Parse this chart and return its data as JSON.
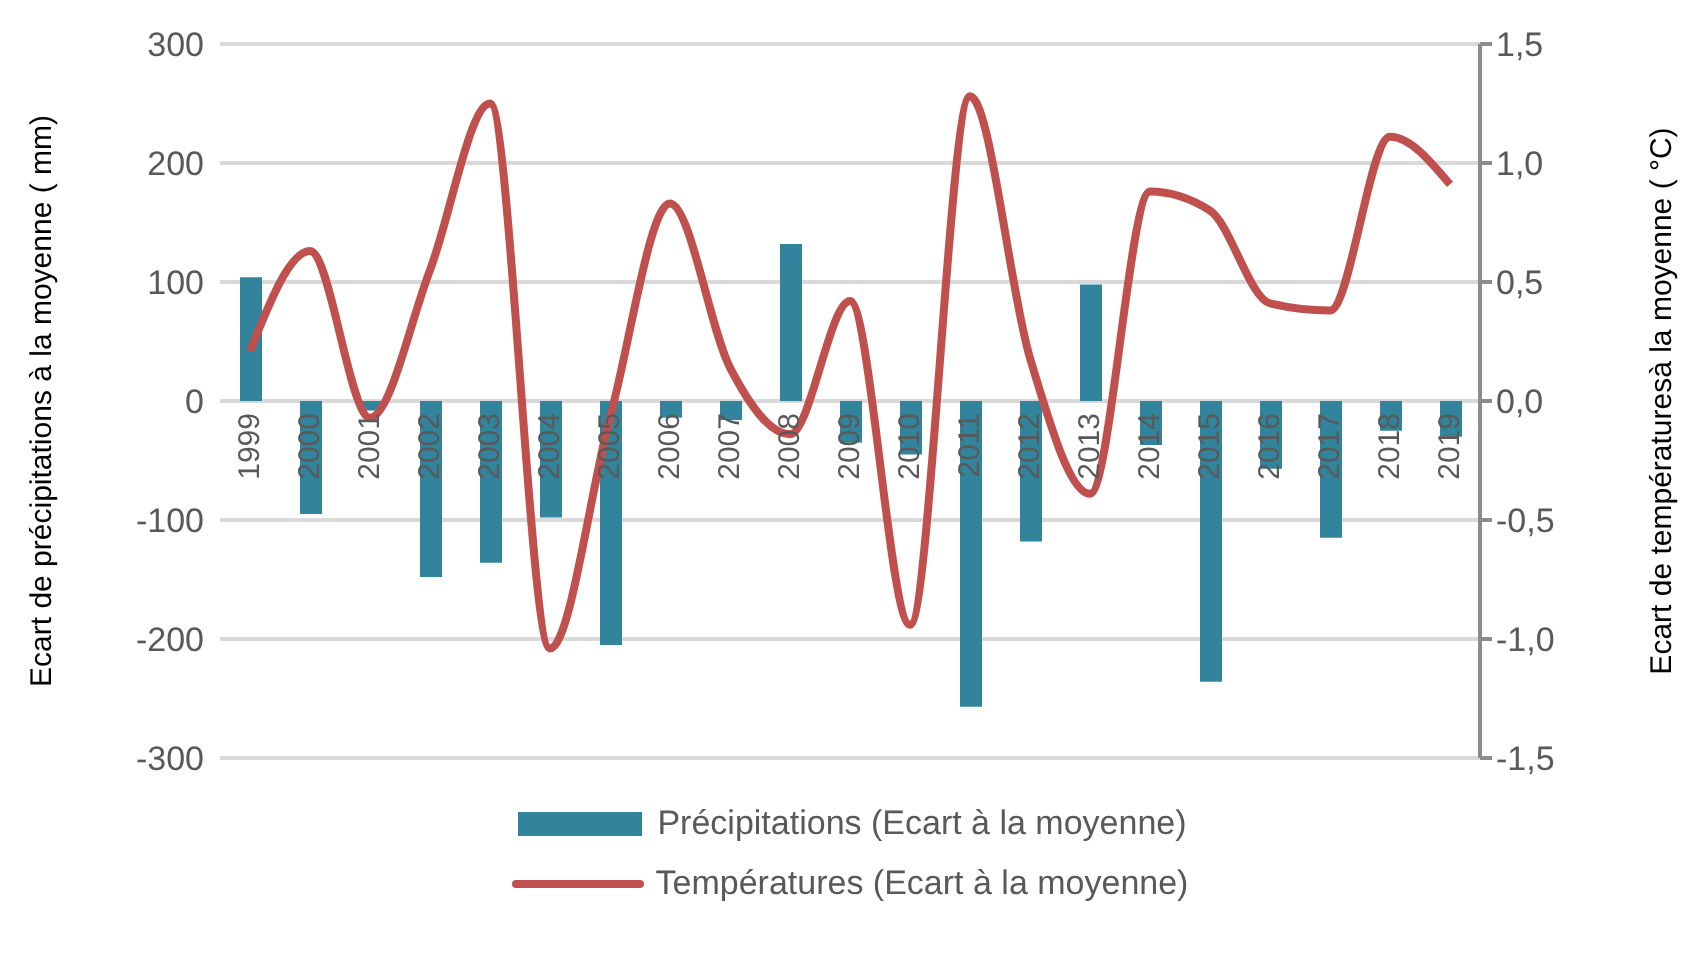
{
  "chart_data": {
    "type": "bar",
    "ylabel": "Ecart de précipitations à la moyenne ( mm)",
    "y2label": "Ecart de températuresà la moyenne ( °C)",
    "categories": [
      "1999",
      "2000",
      "2001",
      "2002",
      "2003",
      "2004",
      "2005",
      "2006",
      "2007",
      "2008",
      "2009",
      "2010",
      "2011",
      "2012",
      "2013",
      "2014",
      "2015",
      "2016",
      "2017",
      "2018",
      "2019"
    ],
    "series": [
      {
        "name": "Précipitations (Ecart à la moyenne)",
        "color": "#31849b",
        "values": [
          104,
          -95,
          -8,
          -148,
          -136,
          -98,
          -205,
          -14,
          -16,
          132,
          -35,
          -45,
          -257,
          -118,
          98,
          -37,
          -236,
          -57,
          -115,
          -25,
          -30
        ]
      },
      {
        "name": "Températures (Ecart à la moyenne)",
        "type": "line",
        "axis": "y2",
        "color": "#c0504d",
        "line_style": "solid",
        "values": [
          0.21,
          0.63,
          -0.07,
          0.55,
          1.25,
          -1.04,
          -0.07,
          0.83,
          0.14,
          -0.14,
          0.42,
          -0.94,
          1.28,
          0.18,
          -0.39,
          0.88,
          0.8,
          0.41,
          0.38,
          1.11,
          0.91
        ]
      }
    ],
    "ylim": [
      -300,
      300
    ],
    "yticks": [
      -300,
      -200,
      -100,
      0,
      100,
      200,
      300
    ],
    "y2lim": [
      -1.5,
      1.5
    ],
    "y2ticks": [
      {
        "value": -1.5,
        "label": "-1,5"
      },
      {
        "value": -1,
        "label": "-1,0"
      },
      {
        "value": -0.5,
        "label": "-0,5"
      },
      {
        "value": 0,
        "label": "0,0"
      },
      {
        "value": 0.5,
        "label": "0,5"
      },
      {
        "value": 1,
        "label": "1,0"
      },
      {
        "value": 1.5,
        "label": "1,5"
      }
    ],
    "grid": "y",
    "legend": "bottom",
    "marker": "none"
  }
}
